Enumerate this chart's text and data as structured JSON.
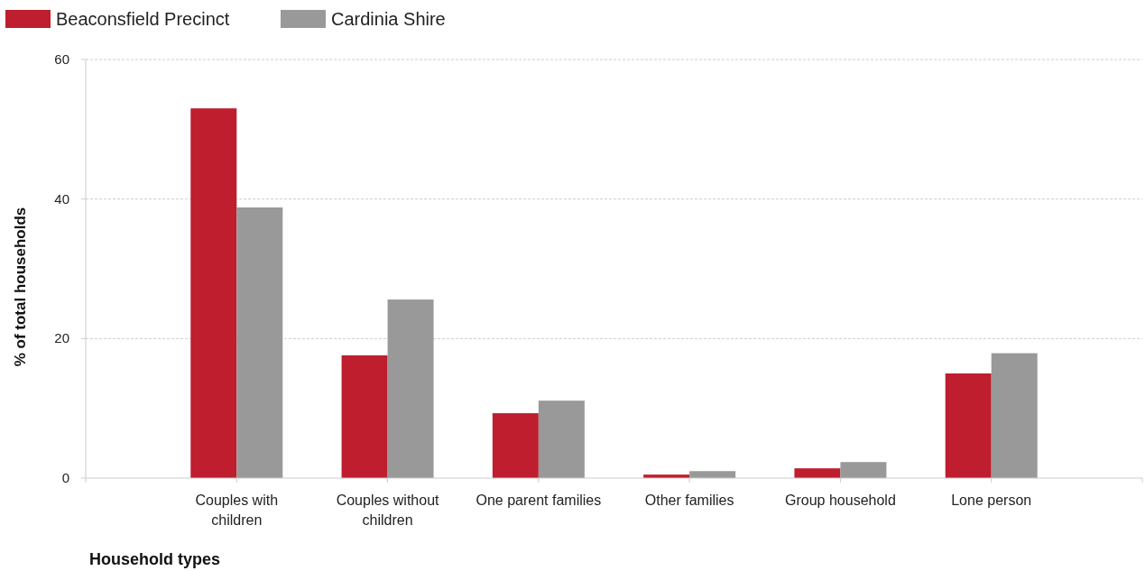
{
  "chart_data": {
    "type": "bar",
    "xlabel": "Household types",
    "ylabel": "% of total households",
    "categories": [
      null,
      "Couples with children",
      "Couples without children",
      "One parent families",
      "Other families",
      "Group household",
      "Lone person",
      null
    ],
    "series": [
      {
        "name": "Beaconsfield Precinct",
        "color": "#be1e2d",
        "values": [
          null,
          53.0,
          17.6,
          9.3,
          0.5,
          1.4,
          15.0,
          null
        ]
      },
      {
        "name": "Cardinia Shire",
        "color": "#999999",
        "values": [
          null,
          38.8,
          25.6,
          11.1,
          1.0,
          2.3,
          17.9,
          null
        ]
      }
    ],
    "ylim": [
      0,
      60
    ],
    "yticks": [
      0,
      20,
      40,
      60
    ],
    "grid": "y",
    "legend": "top left"
  }
}
